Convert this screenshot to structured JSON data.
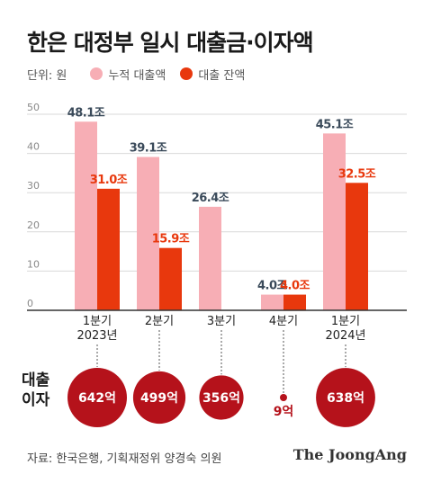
{
  "title": "한은 대정부 일시 대출금·이자액",
  "legend": {
    "unit": "단위: 원",
    "items": [
      {
        "label": "누적 대출액",
        "color": "#f7aeb5"
      },
      {
        "label": "대출 잔액",
        "color": "#e8380d"
      }
    ]
  },
  "chart_data": {
    "type": "bar",
    "categories": [
      "1분기\n2023년",
      "2분기",
      "3분기",
      "4분기",
      "1분기\n2024년"
    ],
    "ylim": [
      0,
      50
    ],
    "yticks": [
      0,
      10,
      20,
      30,
      40,
      50
    ],
    "grid": true,
    "series": [
      {
        "name": "누적 대출액",
        "color": "#f7aeb5",
        "values": [
          48.1,
          39.1,
          26.4,
          4.0,
          45.1
        ],
        "labels": [
          "48.1조",
          "39.1조",
          "26.4조",
          "4.0조",
          "45.1조"
        ],
        "label_color": "#3a4a5a"
      },
      {
        "name": "대출 잔액",
        "color": "#e8380d",
        "values": [
          31.0,
          15.9,
          null,
          4.0,
          32.5
        ],
        "labels": [
          "31.0조",
          "15.9조",
          null,
          "4.0조",
          "32.5조"
        ],
        "label_color": "#e8380d"
      }
    ],
    "interest": {
      "label": "대출 이자",
      "values": [
        "642억",
        "499억",
        "356억",
        "9억",
        "638억"
      ],
      "amounts": [
        642,
        499,
        356,
        9,
        638
      ],
      "color": "#b5121b"
    }
  },
  "source": "자료: 한국은행, 기획재정위 양경숙 의원",
  "brand": "The JoongAng"
}
